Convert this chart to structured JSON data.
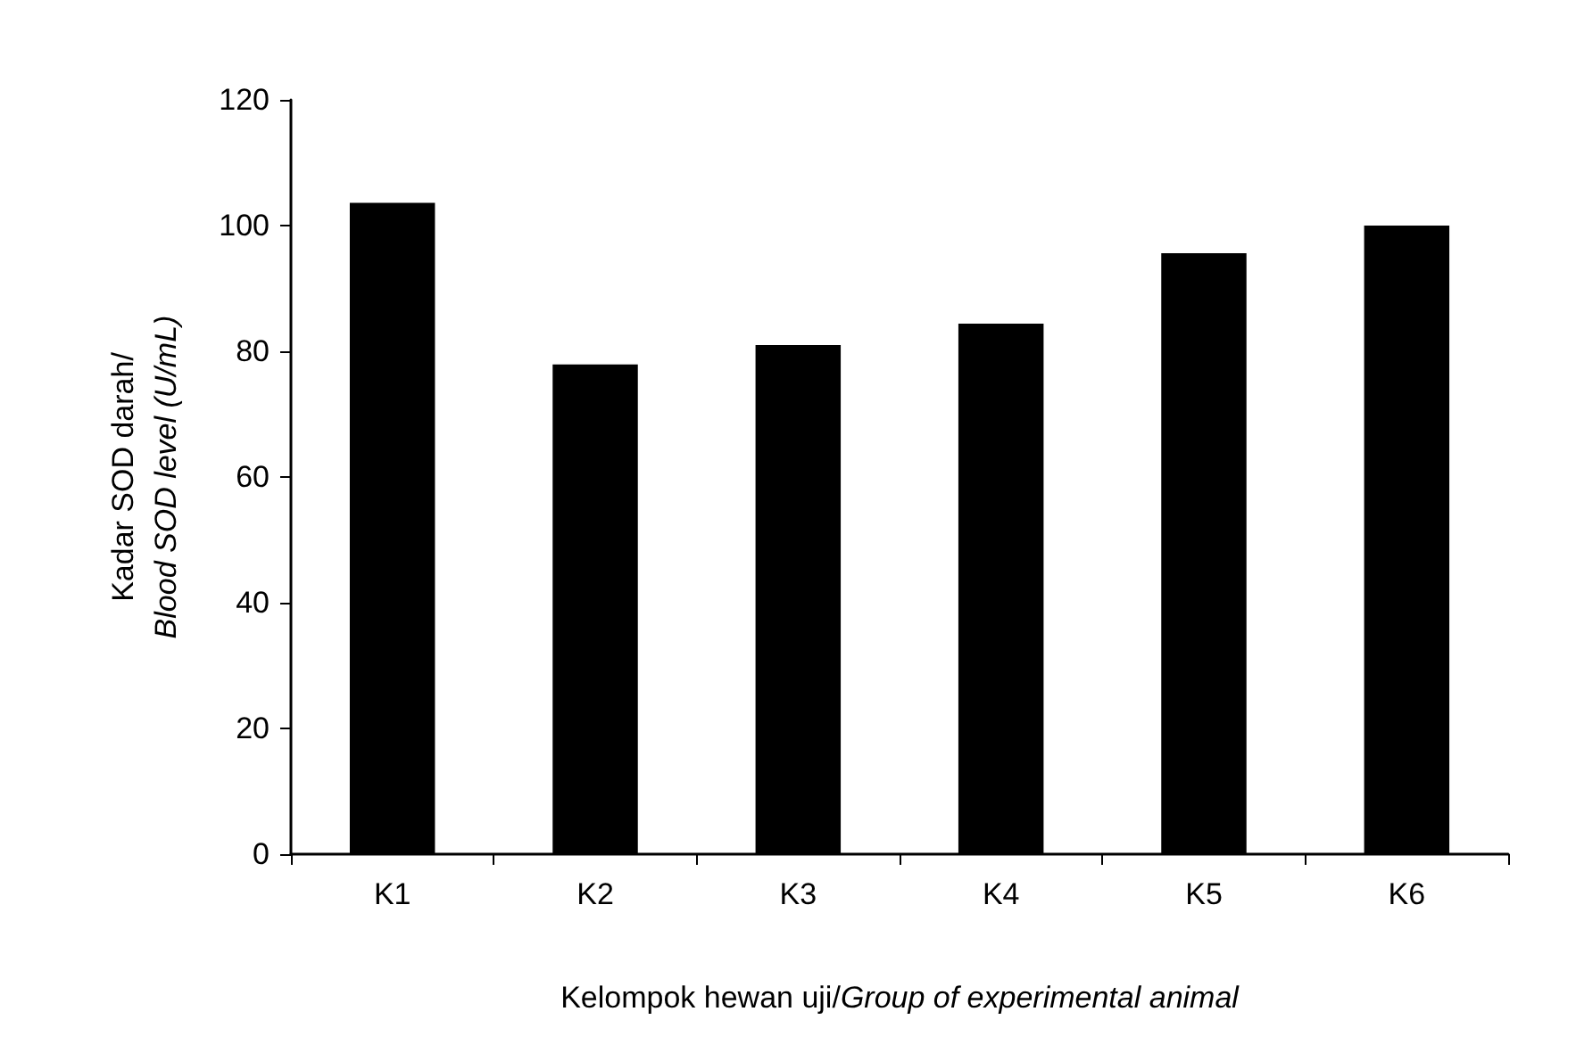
{
  "chart_data": {
    "type": "bar",
    "xlabel": "Kelompok hewan uji/Group of experimental animal",
    "ylabel": "Kadar SOD darah/Blood SOD level (U/mL)",
    "categories": [
      "K1",
      "K2",
      "K3",
      "K4",
      "K5",
      "K6"
    ],
    "values": [
      103.6,
      77.9,
      81,
      84.4,
      95.6,
      100
    ],
    "color": "#000000",
    "ylim": [
      0,
      120
    ],
    "yticks": [
      0,
      20,
      40,
      60,
      80,
      100,
      120
    ],
    "grid": false
  }
}
